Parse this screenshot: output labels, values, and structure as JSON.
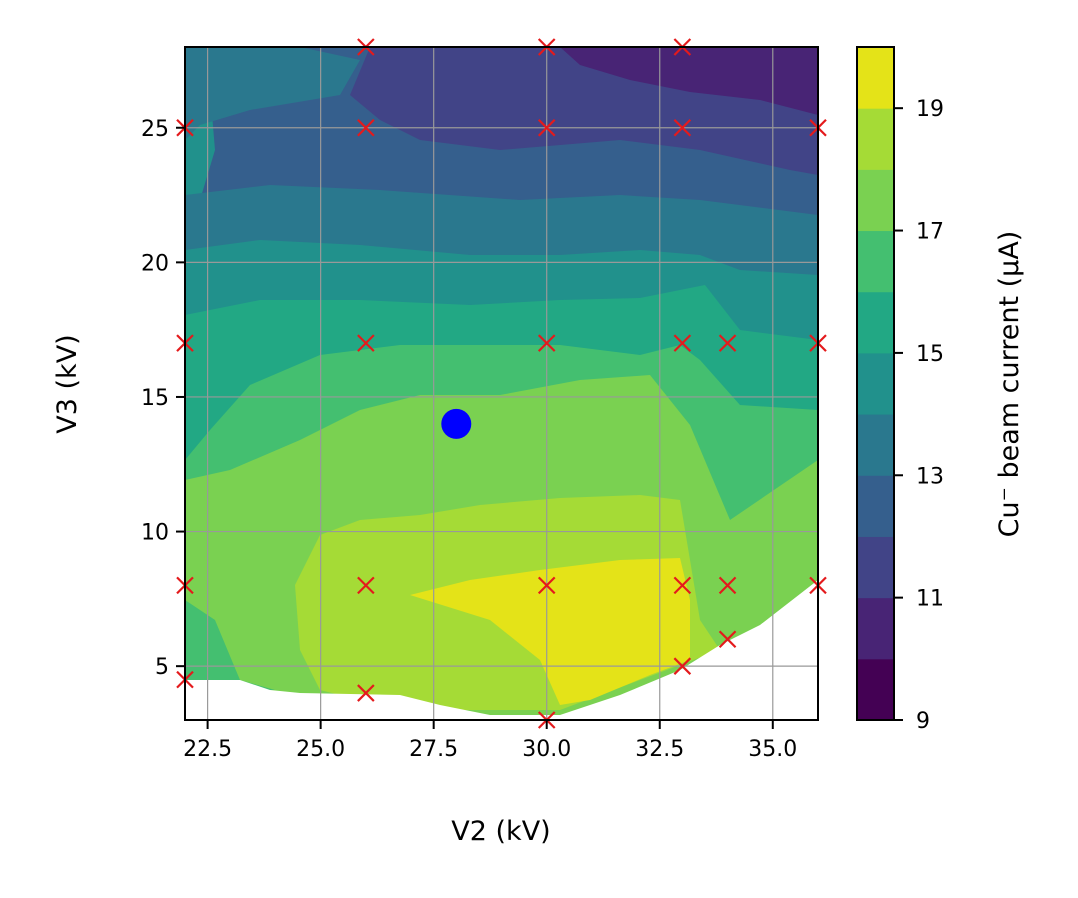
{
  "chart_data": {
    "type": "contour",
    "xlabel": "V2 (kV)",
    "ylabel": "V3 (kV)",
    "colorbar_label": "Cu⁻ beam current (μA)",
    "xlim": [
      22,
      36
    ],
    "ylim": [
      3,
      28
    ],
    "x_ticks": [
      "22.5",
      "25.0",
      "27.5",
      "30.0",
      "32.5",
      "35.0"
    ],
    "y_ticks": [
      "5",
      "10",
      "15",
      "20",
      "25"
    ],
    "colorbar_ticks": [
      "9",
      "11",
      "13",
      "15",
      "17",
      "19"
    ],
    "colorbar_range": [
      9,
      20
    ],
    "grid": true,
    "levels": [
      9,
      10,
      11,
      12,
      13,
      14,
      15,
      16,
      17,
      18,
      19,
      20
    ],
    "level_colors": [
      "#440154",
      "#482475",
      "#414487",
      "#355f8d",
      "#2a788e",
      "#21918c",
      "#22a884",
      "#44bf70",
      "#7ad151",
      "#a5db36",
      "#e4e318"
    ],
    "measured_points": [
      [
        22,
        25
      ],
      [
        22,
        17
      ],
      [
        22,
        8
      ],
      [
        22,
        4.5
      ],
      [
        26,
        28
      ],
      [
        26,
        25
      ],
      [
        26,
        17
      ],
      [
        26,
        8
      ],
      [
        26,
        4
      ],
      [
        30,
        28
      ],
      [
        30,
        25
      ],
      [
        30,
        17
      ],
      [
        30,
        8
      ],
      [
        30,
        3
      ],
      [
        33,
        28
      ],
      [
        33,
        25
      ],
      [
        33,
        17
      ],
      [
        33,
        8
      ],
      [
        33,
        5
      ],
      [
        34,
        17
      ],
      [
        34,
        8
      ],
      [
        34,
        6
      ],
      [
        36,
        25
      ],
      [
        36,
        17
      ],
      [
        36,
        8
      ]
    ],
    "highlight_point": [
      28,
      14
    ],
    "point_colors": {
      "measured": "#e41a1c",
      "highlight": "#0000ff"
    }
  }
}
